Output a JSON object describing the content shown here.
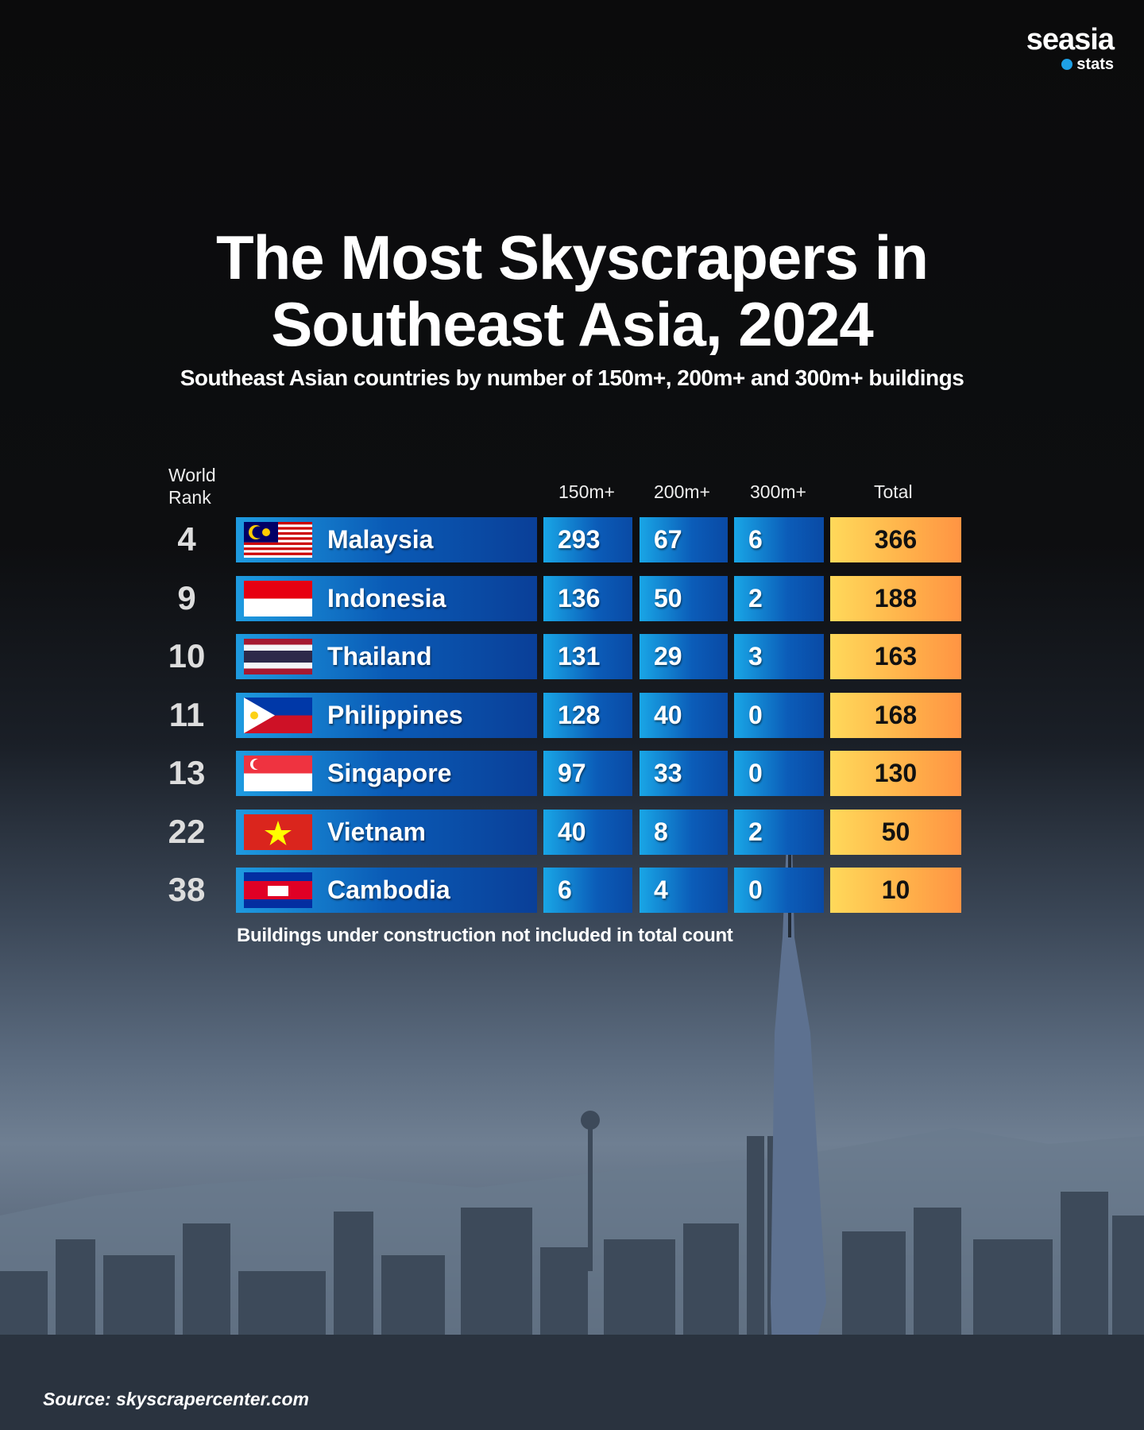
{
  "logo": {
    "line1": "seasia",
    "line2": "stats"
  },
  "title": {
    "line1": "The Most Skyscrapers in",
    "line2": "Southeast Asia, 2024"
  },
  "subtitle": "Southeast Asian countries by number of 150m+, 200m+ and 300m+ buildings",
  "headers": {
    "rank_line1": "World",
    "rank_line2": "Rank",
    "c150": "150m+",
    "c200": "200m+",
    "c300": "300m+",
    "total": "Total"
  },
  "rows": [
    {
      "rank": "4",
      "country": "Malaysia",
      "flag": "malaysia-flag",
      "m150": "293",
      "m200": "67",
      "m300": "6",
      "total": "366"
    },
    {
      "rank": "9",
      "country": "Indonesia",
      "flag": "indonesia-flag",
      "m150": "136",
      "m200": "50",
      "m300": "2",
      "total": "188"
    },
    {
      "rank": "10",
      "country": "Thailand",
      "flag": "thailand-flag",
      "m150": "131",
      "m200": "29",
      "m300": "3",
      "total": "163"
    },
    {
      "rank": "11",
      "country": "Philippines",
      "flag": "philippines-flag",
      "m150": "128",
      "m200": "40",
      "m300": "0",
      "total": "168"
    },
    {
      "rank": "13",
      "country": "Singapore",
      "flag": "singapore-flag",
      "m150": "97",
      "m200": "33",
      "m300": "0",
      "total": "130"
    },
    {
      "rank": "22",
      "country": "Vietnam",
      "flag": "vietnam-flag",
      "m150": "40",
      "m200": "8",
      "m300": "2",
      "total": "50"
    },
    {
      "rank": "38",
      "country": "Cambodia",
      "flag": "cambodia-flag",
      "m150": "6",
      "m200": "4",
      "m300": "0",
      "total": "10"
    }
  ],
  "footnote": "Buildings under construction not included in total count",
  "source": "Source: skyscrapercenter.com",
  "colors": {
    "country_bar": "#0a5bb6",
    "number_cell": "#19a6e6",
    "total_cell": "#ffb04a",
    "background": "#0b0b0c"
  }
}
